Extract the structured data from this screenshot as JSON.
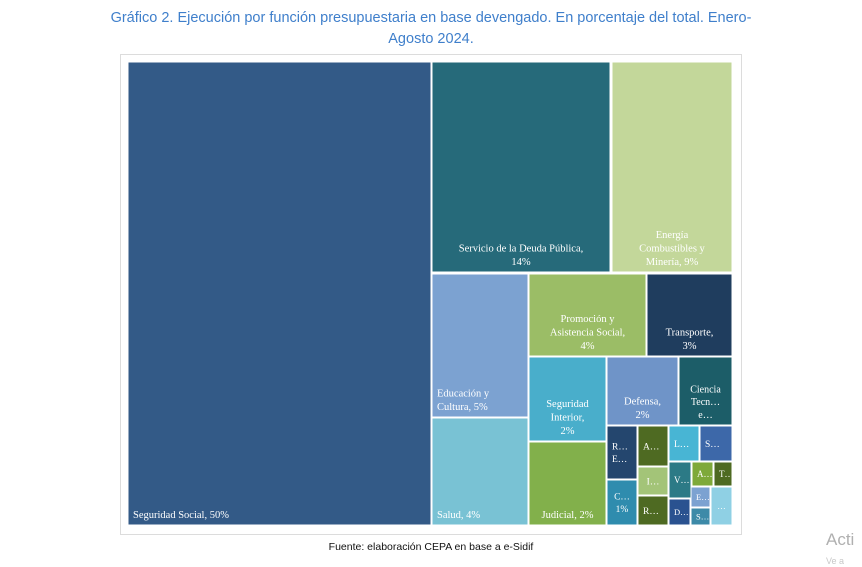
{
  "page": {
    "title": "Gráfico 2. Ejecución por función presupuestaria en base devengado. En porcentaje del total. Enero-Agosto 2024.",
    "source": "Fuente: elaboración CEPA en base a e-Sidif",
    "watermark": "Acti",
    "watermark_sub": "Ve a"
  },
  "chart_data": {
    "type": "treemap",
    "title": "Gráfico 2. Ejecución por función presupuestaria en base devengado. En porcentaje del total. Enero-Agosto 2024.",
    "unit": "%",
    "items": [
      {
        "key": "seguridad-social",
        "label": [
          "Seguridad Social, 50%"
        ],
        "value": 50,
        "color": "#335a87"
      },
      {
        "key": "servicio-deuda",
        "label": [
          "Servicio de la Deuda Pública,",
          "14%"
        ],
        "value": 14,
        "color": "#266a7a"
      },
      {
        "key": "energia",
        "label": [
          "Energía",
          "Combustibles y",
          "Minería, 9%"
        ],
        "value": 9,
        "color": "#c3d79a"
      },
      {
        "key": "educacion",
        "label": [
          "Educación y",
          "Cultura, 5%"
        ],
        "value": 5,
        "color": "#7ca2d1"
      },
      {
        "key": "promocion",
        "label": [
          "Promoción y",
          "Asistencia Social,",
          "4%"
        ],
        "value": 4,
        "color": "#9bbd66"
      },
      {
        "key": "transporte",
        "label": [
          "Transporte,",
          "3%"
        ],
        "value": 3,
        "color": "#1f3d5e"
      },
      {
        "key": "salud",
        "label": [
          "Salud, 4%"
        ],
        "value": 4,
        "color": "#79c2d4"
      },
      {
        "key": "seguridad-interior",
        "label": [
          "Seguridad",
          "Interior,",
          "2%"
        ],
        "value": 2,
        "color": "#49aecb"
      },
      {
        "key": "judicial",
        "label": [
          "Judicial, 2%"
        ],
        "value": 2,
        "color": "#82b04b"
      },
      {
        "key": "defensa",
        "label": [
          "Defensa,",
          "2%"
        ],
        "value": 2,
        "color": "#6f94c8"
      },
      {
        "key": "ciencia",
        "label": [
          "Ciencia",
          "Tecn…",
          "e…"
        ],
        "value": null,
        "color": "#1c5d68"
      },
      {
        "key": "s01",
        "label": [
          "R…",
          "E…"
        ],
        "value": null,
        "color": "#24466e"
      },
      {
        "key": "s02",
        "label": [
          "A…"
        ],
        "value": null,
        "color": "#4e6a22"
      },
      {
        "key": "s03",
        "label": [
          "L…"
        ],
        "value": null,
        "color": "#48b5d4"
      },
      {
        "key": "s04",
        "label": [
          "S…"
        ],
        "value": null,
        "color": "#3d68a9"
      },
      {
        "key": "s05",
        "label": [
          "I…"
        ],
        "value": null,
        "color": "#a3c478"
      },
      {
        "key": "s06",
        "label": [
          "V…"
        ],
        "value": null,
        "color": "#2c7a86"
      },
      {
        "key": "s07",
        "label": [
          "A…"
        ],
        "value": null,
        "color": "#7ea93a"
      },
      {
        "key": "s08",
        "label": [
          "T…"
        ],
        "value": null,
        "color": "#4e6a22"
      },
      {
        "key": "s09",
        "label": [
          "C…",
          "1%"
        ],
        "value": 1,
        "color": "#2f8cae"
      },
      {
        "key": "s10",
        "label": [
          "R…"
        ],
        "value": null,
        "color": "#4e6a22"
      },
      {
        "key": "s11",
        "label": [
          "D…"
        ],
        "value": null,
        "color": "#2a5290"
      },
      {
        "key": "s12",
        "label": [
          "E…"
        ],
        "value": null,
        "color": "#7ca2d1"
      },
      {
        "key": "s13",
        "label": [
          "S…"
        ],
        "value": null,
        "color": "#3d8aa8"
      },
      {
        "key": "s14",
        "label": [
          "…"
        ],
        "value": null,
        "color": "#8fd0e4"
      }
    ]
  }
}
